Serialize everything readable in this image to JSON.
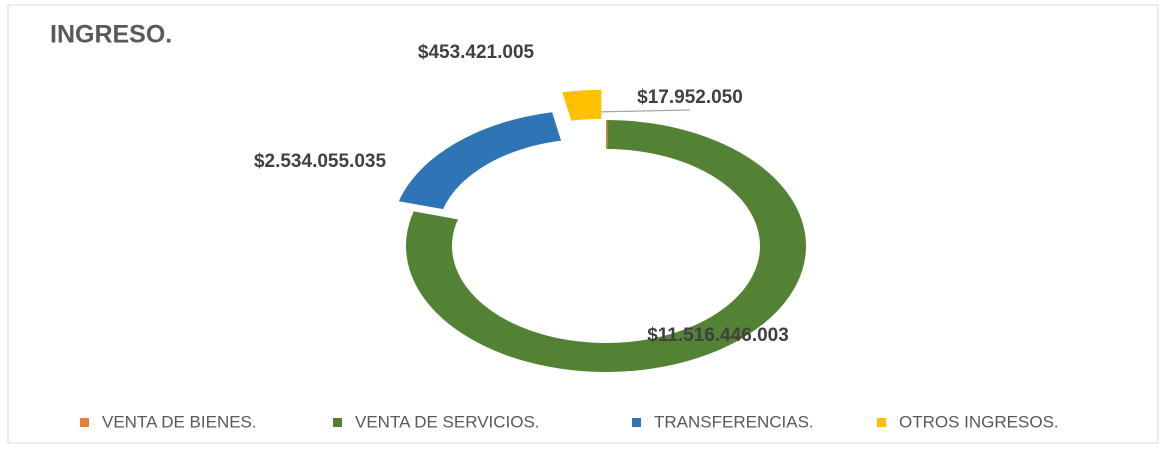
{
  "chart_data": {
    "type": "donut",
    "title": "INGRESO.",
    "categories": [
      "VENTA DE BIENES.",
      "VENTA DE SERVICIOS.",
      "TRANSFERENCIAS.",
      "OTROS INGRESOS."
    ],
    "values": [
      17952050,
      11516446003,
      2534055035,
      453421005
    ],
    "value_labels": [
      "$17.952.050",
      "$11.516.446.003",
      "$2.534.055.035",
      "$453.421.005"
    ],
    "colors": [
      "#ed7d31",
      "#548235",
      "#2e75b6",
      "#ffc000"
    ],
    "legend": "bottom"
  }
}
